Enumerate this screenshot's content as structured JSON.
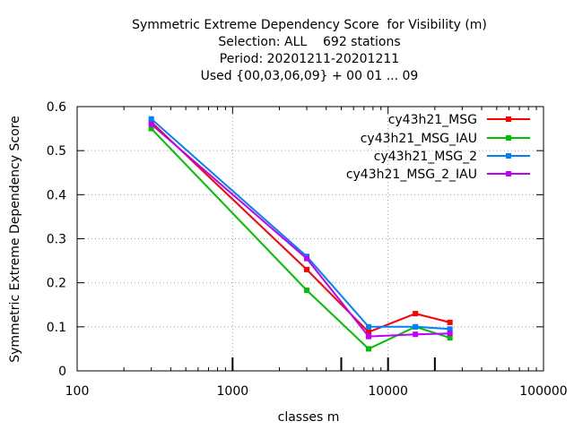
{
  "title_lines": [
    "Symmetric Extreme Dependency Score  for Visibility (m)",
    "Selection: ALL    692 stations",
    "Period: 20201211-20201211",
    "Used {00,03,06,09} + 00 01 ... 09"
  ],
  "chart_data": {
    "type": "line",
    "title": "Symmetric Extreme Dependency Score  for Visibility (m)",
    "xlabel": "classes m",
    "ylabel": "Symmetric Extreme Dependency Score",
    "xscale": "log",
    "xlim": [
      100,
      100000
    ],
    "ylim": [
      0,
      0.6
    ],
    "xticks": [
      {
        "value": 100,
        "label": "100"
      },
      {
        "value": 1000,
        "label": "1000"
      },
      {
        "value": 10000,
        "label": "10000"
      },
      {
        "value": 100000,
        "label": "100000"
      }
    ],
    "yticks": [
      {
        "value": 0,
        "label": "0"
      },
      {
        "value": 0.1,
        "label": "0.1"
      },
      {
        "value": 0.2,
        "label": "0.2"
      },
      {
        "value": 0.3,
        "label": "0.3"
      },
      {
        "value": 0.4,
        "label": "0.4"
      },
      {
        "value": 0.5,
        "label": "0.5"
      },
      {
        "value": 0.6,
        "label": "0.6"
      }
    ],
    "grid": true,
    "legend_position": "top-right",
    "class_markers": [
      1000,
      5000,
      10000,
      20000
    ],
    "series": [
      {
        "name": "cy43h21_MSG",
        "color": "#ff0000",
        "x": [
          300,
          3000,
          7500,
          15000,
          25000
        ],
        "values": [
          0.565,
          0.23,
          0.088,
          0.13,
          0.11
        ]
      },
      {
        "name": "cy43h21_MSG_IAU",
        "color": "#00c000",
        "x": [
          300,
          3000,
          7500,
          15000,
          25000
        ],
        "values": [
          0.55,
          0.183,
          0.05,
          0.1,
          0.075
        ]
      },
      {
        "name": "cy43h21_MSG_2",
        "color": "#0080ff",
        "x": [
          300,
          3000,
          7500,
          15000,
          25000
        ],
        "values": [
          0.572,
          0.26,
          0.1,
          0.1,
          0.095
        ]
      },
      {
        "name": "cy43h21_MSG_2_IAU",
        "color": "#c000ff",
        "x": [
          300,
          3000,
          7500,
          15000,
          25000
        ],
        "values": [
          0.56,
          0.255,
          0.078,
          0.083,
          0.085
        ]
      }
    ]
  }
}
